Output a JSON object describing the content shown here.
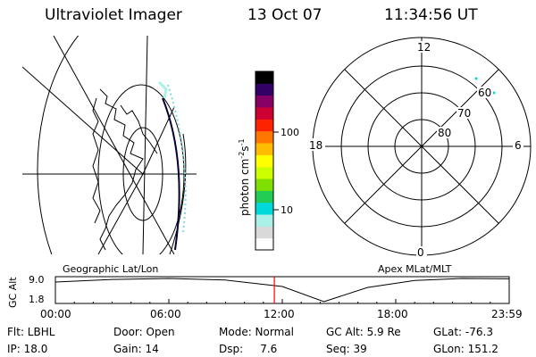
{
  "header": {
    "instrument": "Ultraviolet Imager",
    "date": "13 Oct 07",
    "time": "11:34:56 UT"
  },
  "geo_panel": {
    "label": "Geographic Lat/Lon"
  },
  "colorbar": {
    "label": "photon cm",
    "label_sup": "-2",
    "label_s": "s",
    "label_s_sup": "-1",
    "ticks": [
      {
        "text": "100",
        "value": 100
      },
      {
        "text": "10",
        "value": 10
      }
    ],
    "colors": [
      "#ffffff",
      "#d9d9d9",
      "#a8f0e8",
      "#00d9d9",
      "#22cc55",
      "#7fe000",
      "#ccff00",
      "#ffff00",
      "#ffbb00",
      "#ff7700",
      "#ff2200",
      "#cc0033",
      "#880066",
      "#330066",
      "#000000"
    ]
  },
  "polar_panel": {
    "label": "Apex MLat/MLT",
    "mlt_labels": {
      "top": "12",
      "left": "18",
      "right": "6",
      "bottom": "0"
    },
    "lat_labels": [
      "60",
      "70",
      "80"
    ]
  },
  "timeline": {
    "ylabel": "GC Alt",
    "ytop": "9.0",
    "ybottom": "1.8",
    "ticks": [
      "00:00",
      "06:00",
      "12:00",
      "18:00",
      "23:59"
    ],
    "current_time_hours": 11.58,
    "curve": [
      {
        "t": 0,
        "alt": 7.9
      },
      {
        "t": 3,
        "alt": 8.7
      },
      {
        "t": 6,
        "alt": 9.0
      },
      {
        "t": 9,
        "alt": 8.5
      },
      {
        "t": 12,
        "alt": 6.5
      },
      {
        "t": 14.2,
        "alt": 1.8
      },
      {
        "t": 16.5,
        "alt": 6.2
      },
      {
        "t": 19,
        "alt": 8.4
      },
      {
        "t": 21.5,
        "alt": 9.0
      },
      {
        "t": 24,
        "alt": 8.9
      }
    ]
  },
  "footer": {
    "flt": "Flt: LBHL",
    "ip": "IP: 18.0",
    "door": "Door: Open",
    "gain": "Gain: 14",
    "mode": "Mode: Normal",
    "dsp": "Dsp:     7.6",
    "gcalt": "GC Alt: 5.9 Re",
    "seq": "Seq: 39",
    "glat": "GLat: -76.3",
    "glon": "GLon: 151.2"
  }
}
